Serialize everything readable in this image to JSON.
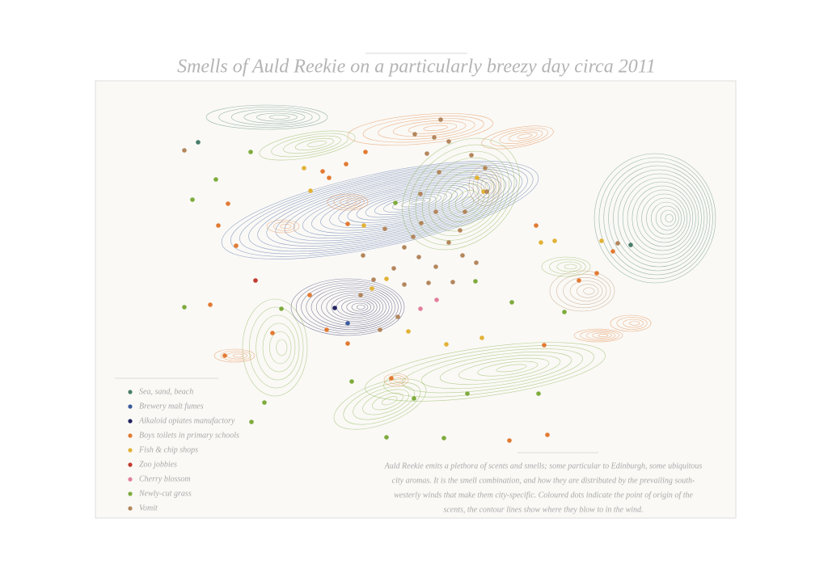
{
  "title": "Smells of Auld Reekie on a particularly breezy day circa 2011",
  "legend": [
    {
      "label": "Sea, sand, beach",
      "color": "#4a7d6b"
    },
    {
      "label": "Brewery malt fumes",
      "color": "#3b5b9c"
    },
    {
      "label": "Alkaloid opiates manufactory",
      "color": "#23235e"
    },
    {
      "label": "Boys toilets in primary schools",
      "color": "#e27a32"
    },
    {
      "label": "Fish & chip shops",
      "color": "#e2b236"
    },
    {
      "label": "Zoo jobbies",
      "color": "#c23a30"
    },
    {
      "label": "Cherry blossom",
      "color": "#e27f9c"
    },
    {
      "label": "Newly-cut grass",
      "color": "#7eab3c"
    },
    {
      "label": "Vomit",
      "color": "#b3865c"
    }
  ],
  "description": [
    "Auld Reekie emits a plethora of scents and smells; some particular to Edinburgh, some ubiquitous",
    "city aromas. It is the smell combination, and how they are distributed by the prevailing south-",
    "westerly winds that make them city-specific. Coloured dots indicate the point of origin of the",
    "scents, the contour lines show where they blow to in the wind."
  ]
}
